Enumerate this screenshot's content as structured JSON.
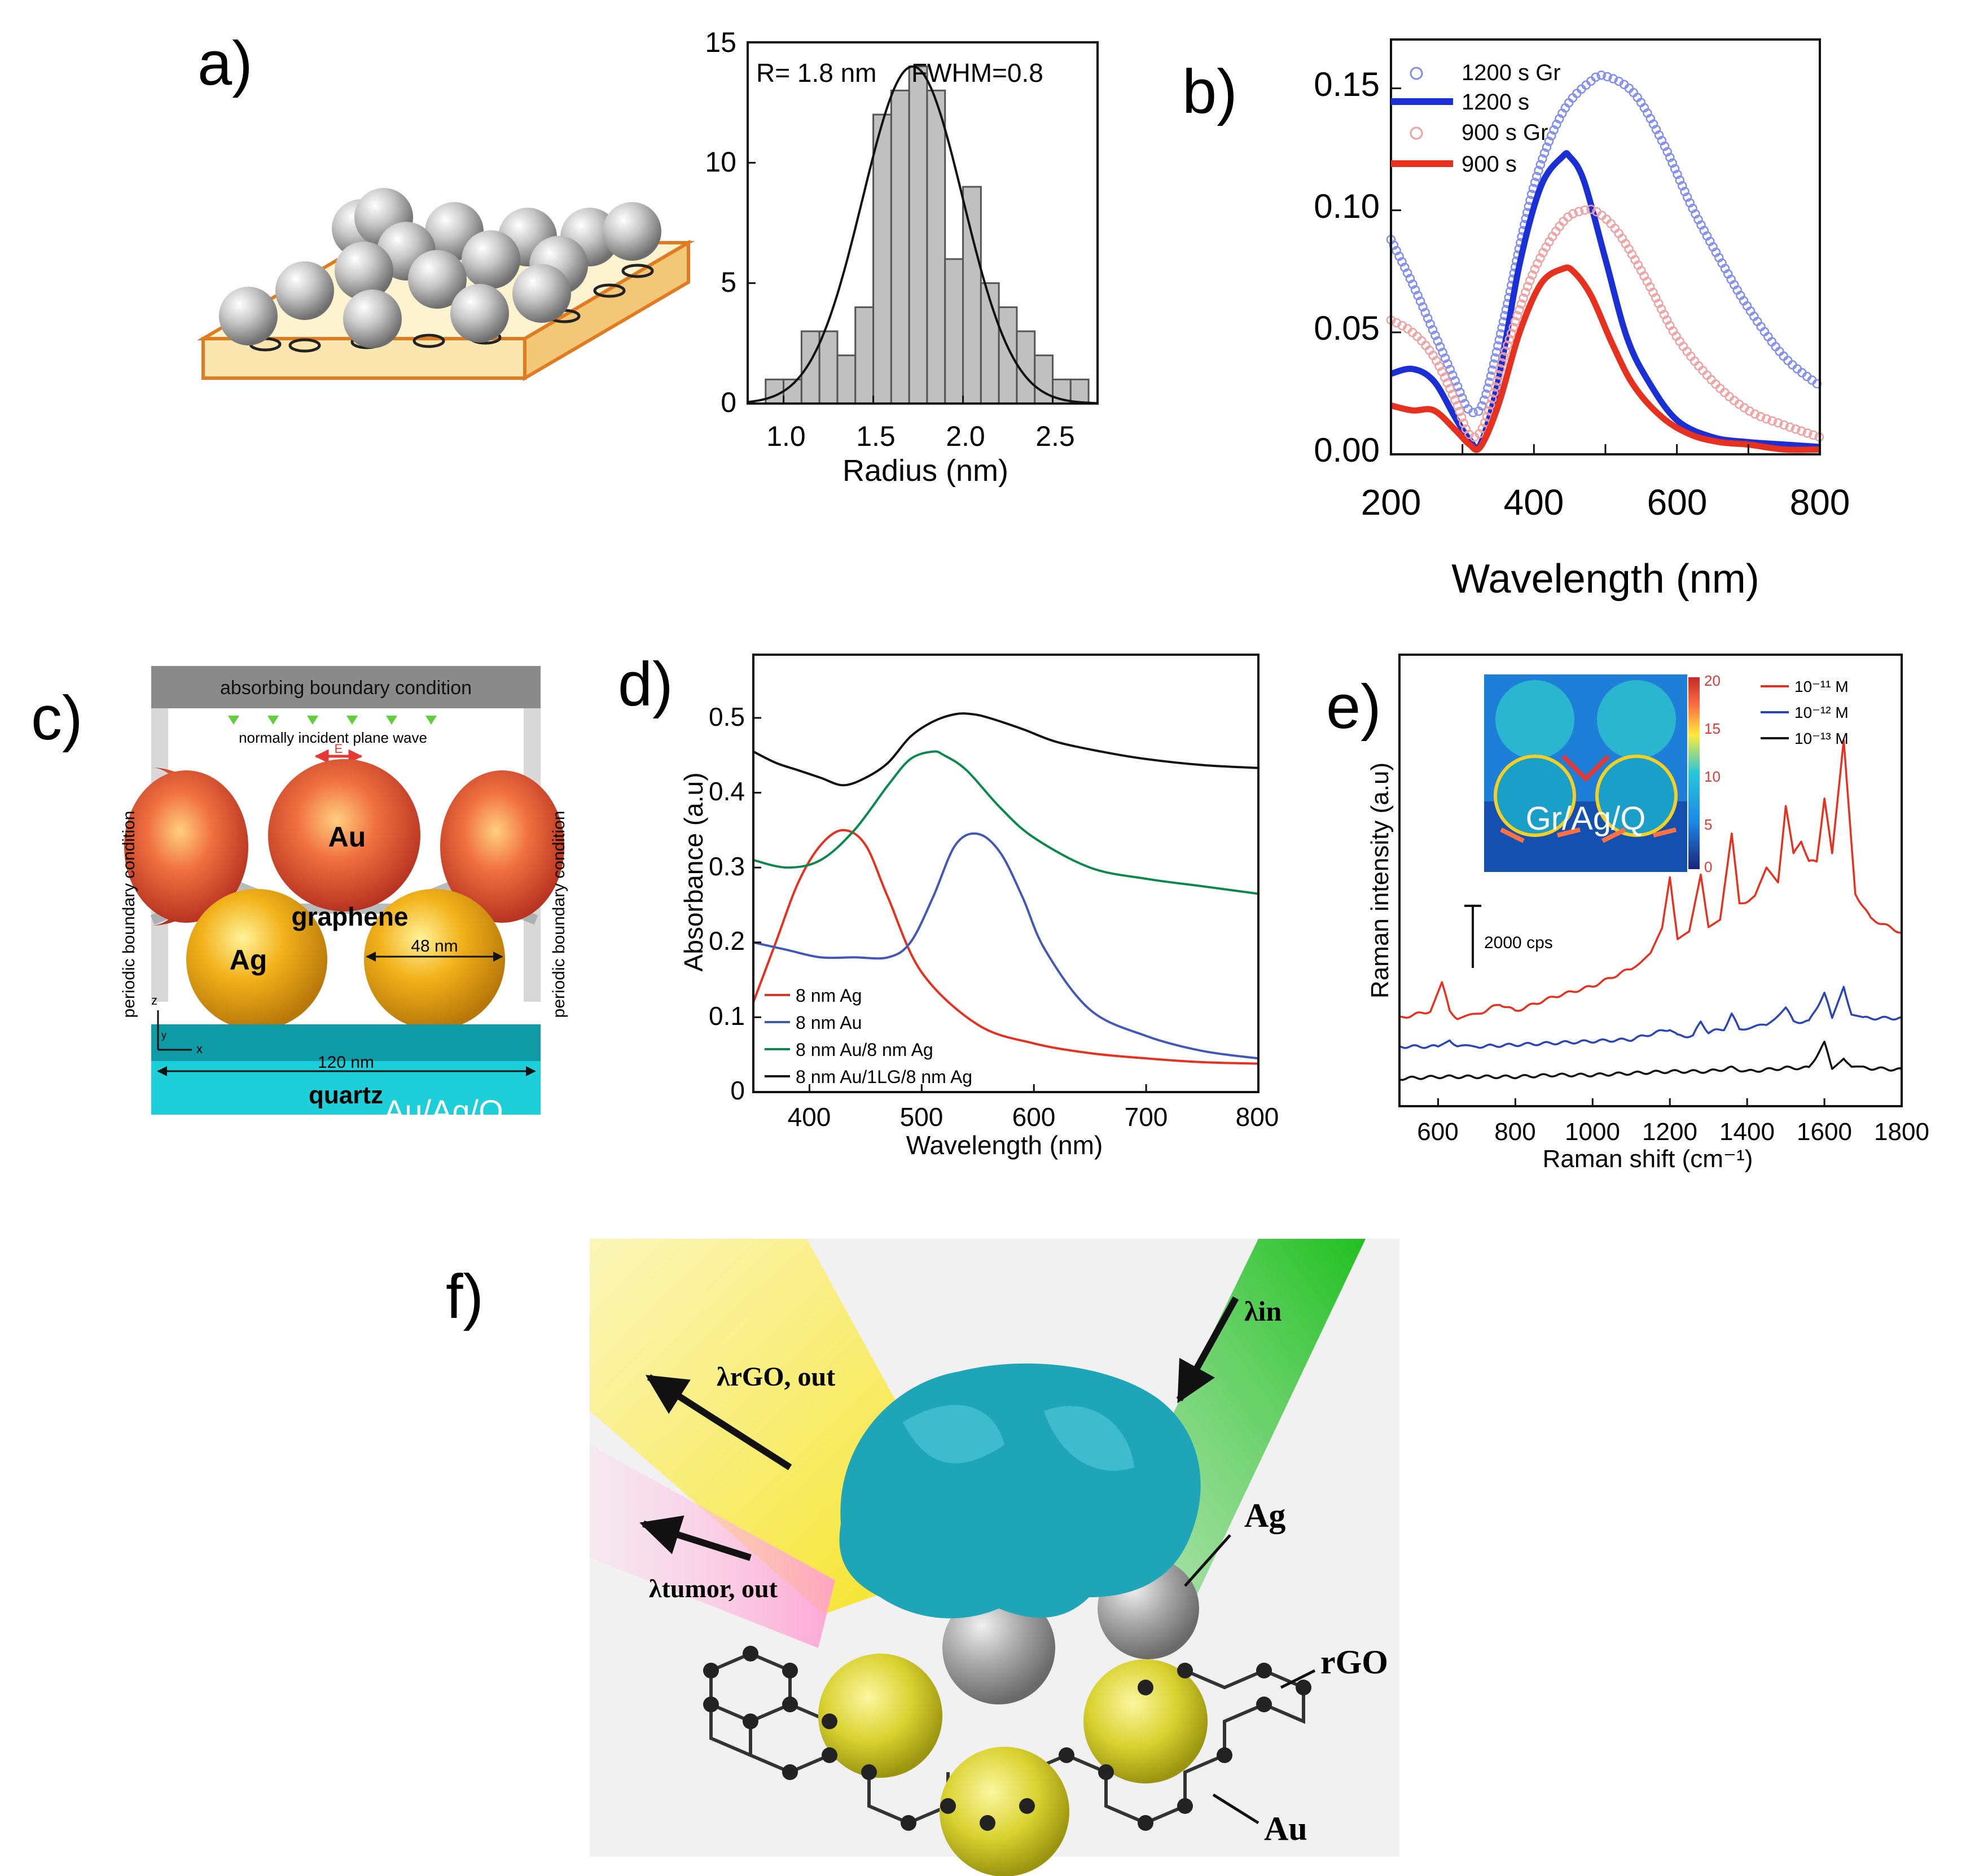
{
  "panel_labels": {
    "a": "a)",
    "b": "b)",
    "c": "c)",
    "d": "d)",
    "e": "e)",
    "f": "f)"
  },
  "colors": {
    "red": "#e8301f",
    "blue": "#1b2fd6",
    "green": "#0a8a4a",
    "black": "#111111",
    "gray_bar": "#c0c0c0",
    "quartz": "#1db6c0"
  },
  "panel_a": {
    "histogram": {
      "title_left": "R= 1.8 nm",
      "title_right": "FWHM=0.8",
      "xlabel": "Radius (nm)",
      "xticks": [
        "1.0",
        "1.5",
        "2.0",
        "2.5"
      ],
      "yticks": [
        "0",
        "5",
        "10",
        "15"
      ]
    }
  },
  "panel_b": {
    "xlabel": "Wavelength (nm)",
    "xticks": [
      "200",
      "400",
      "600",
      "800"
    ],
    "yticks": [
      "0.00",
      "0.05",
      "0.10",
      "0.15"
    ],
    "legend": [
      "1200 s Gr",
      "1200 s",
      "900 s Gr",
      "900 s"
    ]
  },
  "panel_c": {
    "top_label": "absorbing boundary condition",
    "incident_label": "normally incident plane wave",
    "e_label": "E",
    "side_label_left": "periodic boundary condition",
    "side_label_right": "periodic boundary condition",
    "au_label": "Au",
    "ag_label": "Ag",
    "graphene_label": "graphene",
    "dim_48": "48 nm",
    "dim_120": "120 nm",
    "quartz_label": "quartz",
    "overlay_label": "Au/Ag/Q",
    "axis_z": "z",
    "axis_x": "x",
    "axis_y": "y"
  },
  "panel_d": {
    "xlabel": "Wavelength (nm)",
    "ylabel": "Absorbance (a.u)",
    "xticks": [
      "400",
      "500",
      "600",
      "700",
      "800"
    ],
    "yticks": [
      "0",
      "0.1",
      "0.2",
      "0.3",
      "0.4",
      "0.5"
    ],
    "legend": [
      "8 nm Ag",
      "8 nm Au",
      "8 nm Au/8 nm Ag",
      "8 nm Au/1LG/8 nm Ag"
    ]
  },
  "panel_e": {
    "xlabel": "Raman shift (cm⁻¹)",
    "ylabel": "Raman intensity (a.u)",
    "xticks": [
      "600",
      "800",
      "1000",
      "1200",
      "1400",
      "1600",
      "1800"
    ],
    "scale_bar": "2000 cps",
    "legend": [
      "10⁻¹¹ M",
      "10⁻¹² M",
      "10⁻¹³ M"
    ],
    "inset_label": "Gr/Ag/Q",
    "inset_colorbar": [
      "20",
      "15",
      "10",
      "5",
      "0"
    ]
  },
  "panel_f": {
    "lambda_rgo": "λrGO, out",
    "lambda_tumor": "λtumor, out",
    "lambda_in": "λin",
    "ag_label": "Ag",
    "rgo_label": "rGO",
    "au_label": "Au"
  },
  "chart_data": [
    {
      "id": "a-histogram",
      "type": "bar",
      "title": "R= 1.8 nm   FWHM=0.8",
      "xlabel": "Radius (nm)",
      "ylabel": "",
      "xlim": [
        0.8,
        2.75
      ],
      "ylim": [
        0,
        15
      ],
      "bin_width": 0.1,
      "bin_starts": [
        0.8,
        0.9,
        1.0,
        1.1,
        1.2,
        1.3,
        1.4,
        1.5,
        1.6,
        1.7,
        1.8,
        1.9,
        2.0,
        2.1,
        2.2,
        2.3,
        2.4,
        2.5,
        2.6
      ],
      "values": [
        0,
        1,
        1,
        3,
        3,
        2,
        4,
        12,
        13,
        14,
        13,
        6,
        9,
        5,
        4,
        3,
        2,
        1,
        1
      ],
      "fit": {
        "type": "gaussian",
        "center": 1.72,
        "peak": 14,
        "sigma": 0.28
      }
    },
    {
      "id": "b-extinction",
      "type": "line",
      "xlabel": "Wavelength (nm)",
      "xlim": [
        200,
        800
      ],
      "ylim": [
        0,
        0.17
      ],
      "series": [
        {
          "name": "1200 s Gr",
          "style": "circles",
          "color": "#7f8cf0",
          "x": [
            200,
            230,
            260,
            290,
            310,
            330,
            360,
            400,
            440,
            480,
            500,
            540,
            580,
            620,
            660,
            700,
            750,
            800
          ],
          "y": [
            0.088,
            0.07,
            0.05,
            0.03,
            0.018,
            0.022,
            0.058,
            0.11,
            0.14,
            0.153,
            0.155,
            0.148,
            0.128,
            0.102,
            0.08,
            0.06,
            0.04,
            0.028
          ]
        },
        {
          "name": "1200 s",
          "style": "line",
          "color": "#1b2fd6",
          "x": [
            200,
            230,
            260,
            290,
            310,
            325,
            350,
            380,
            410,
            440,
            450,
            470,
            500,
            530,
            560,
            600,
            650,
            700,
            750,
            800
          ],
          "y": [
            0.033,
            0.035,
            0.03,
            0.015,
            0.006,
            0.004,
            0.03,
            0.078,
            0.11,
            0.122,
            0.122,
            0.112,
            0.08,
            0.048,
            0.03,
            0.014,
            0.007,
            0.005,
            0.004,
            0.003
          ]
        },
        {
          "name": "900 s Gr",
          "style": "circles",
          "color": "#f0a0a0",
          "x": [
            200,
            230,
            260,
            290,
            310,
            330,
            360,
            400,
            440,
            470,
            490,
            520,
            560,
            600,
            650,
            700,
            750,
            800
          ],
          "y": [
            0.055,
            0.05,
            0.04,
            0.022,
            0.008,
            0.012,
            0.042,
            0.075,
            0.095,
            0.1,
            0.099,
            0.09,
            0.07,
            0.048,
            0.03,
            0.018,
            0.012,
            0.007
          ]
        },
        {
          "name": "900 s",
          "style": "line",
          "color": "#e8301f",
          "x": [
            200,
            230,
            260,
            290,
            310,
            325,
            350,
            380,
            410,
            440,
            455,
            480,
            510,
            540,
            580,
            620,
            660,
            700,
            750,
            800
          ],
          "y": [
            0.02,
            0.018,
            0.018,
            0.01,
            0.004,
            0.003,
            0.02,
            0.05,
            0.07,
            0.076,
            0.075,
            0.065,
            0.045,
            0.028,
            0.015,
            0.008,
            0.005,
            0.004,
            0.002,
            0.002
          ]
        }
      ]
    },
    {
      "id": "d-absorbance",
      "type": "line",
      "xlabel": "Wavelength (nm)",
      "ylabel": "Absorbance (a.u)",
      "xlim": [
        350,
        800
      ],
      "ylim": [
        0,
        0.52
      ],
      "series": [
        {
          "name": "8 nm Ag",
          "color": "#e8301f",
          "x": [
            350,
            370,
            390,
            410,
            430,
            450,
            470,
            500,
            550,
            600,
            650,
            700,
            750,
            800
          ],
          "y": [
            0.12,
            0.2,
            0.28,
            0.33,
            0.35,
            0.33,
            0.26,
            0.16,
            0.09,
            0.065,
            0.052,
            0.045,
            0.04,
            0.038
          ]
        },
        {
          "name": "8 nm Au",
          "color": "#4058b8",
          "x": [
            350,
            380,
            410,
            440,
            470,
            490,
            510,
            530,
            550,
            570,
            590,
            610,
            650,
            700,
            750,
            800
          ],
          "y": [
            0.2,
            0.19,
            0.18,
            0.18,
            0.18,
            0.2,
            0.26,
            0.33,
            0.345,
            0.32,
            0.26,
            0.19,
            0.11,
            0.075,
            0.055,
            0.045
          ]
        },
        {
          "name": "8 nm Au/8 nm Ag",
          "color": "#0a8a4a",
          "x": [
            350,
            380,
            410,
            440,
            470,
            490,
            510,
            520,
            540,
            570,
            600,
            650,
            700,
            750,
            800
          ],
          "y": [
            0.31,
            0.3,
            0.31,
            0.35,
            0.41,
            0.445,
            0.455,
            0.45,
            0.43,
            0.38,
            0.34,
            0.3,
            0.285,
            0.275,
            0.265
          ]
        },
        {
          "name": "8 nm Au/1LG/8 nm Ag",
          "color": "#111111",
          "x": [
            350,
            370,
            390,
            410,
            430,
            450,
            470,
            490,
            510,
            530,
            545,
            560,
            590,
            620,
            660,
            700,
            750,
            800
          ],
          "y": [
            0.455,
            0.44,
            0.43,
            0.42,
            0.41,
            0.42,
            0.44,
            0.475,
            0.495,
            0.505,
            0.505,
            0.5,
            0.485,
            0.468,
            0.455,
            0.445,
            0.437,
            0.433
          ]
        }
      ]
    },
    {
      "id": "e-raman",
      "type": "line",
      "xlabel": "Raman shift (cm-1)",
      "ylabel": "Raman intensity (a.u)",
      "xlim": [
        500,
        1800
      ],
      "series": [
        {
          "name": "10-11 M",
          "color": "#e8301f",
          "x": [
            500,
            580,
            610,
            630,
            650,
            700,
            760,
            800,
            900,
            1000,
            1100,
            1150,
            1180,
            1200,
            1220,
            1250,
            1280,
            1300,
            1330,
            1360,
            1380,
            1420,
            1450,
            1480,
            1500,
            1520,
            1540,
            1560,
            1580,
            1600,
            1620,
            1650,
            1680,
            1720,
            1800
          ],
          "y": [
            0.2,
            0.22,
            0.3,
            0.22,
            0.2,
            0.21,
            0.24,
            0.22,
            0.26,
            0.29,
            0.34,
            0.38,
            0.45,
            0.6,
            0.42,
            0.44,
            0.6,
            0.46,
            0.48,
            0.72,
            0.52,
            0.54,
            0.62,
            0.58,
            0.8,
            0.66,
            0.7,
            0.64,
            0.64,
            0.82,
            0.66,
            0.98,
            0.55,
            0.48,
            0.44
          ]
        },
        {
          "name": "10-12 M",
          "color": "#2a45b5",
          "x": [
            500,
            600,
            630,
            650,
            700,
            800,
            900,
            1000,
            1100,
            1200,
            1220,
            1260,
            1280,
            1300,
            1340,
            1360,
            1380,
            1450,
            1500,
            1520,
            1560,
            1600,
            1620,
            1650,
            1670,
            1700,
            1800
          ],
          "y": [
            0.12,
            0.12,
            0.14,
            0.12,
            0.12,
            0.125,
            0.13,
            0.135,
            0.14,
            0.17,
            0.15,
            0.15,
            0.19,
            0.16,
            0.17,
            0.21,
            0.17,
            0.18,
            0.23,
            0.19,
            0.19,
            0.27,
            0.2,
            0.29,
            0.21,
            0.2,
            0.2
          ]
        },
        {
          "name": "10-13 M",
          "color": "#111111",
          "x": [
            500,
            600,
            700,
            800,
            900,
            1000,
            1100,
            1200,
            1300,
            1360,
            1400,
            1500,
            1560,
            1600,
            1620,
            1650,
            1670,
            1700,
            1800
          ],
          "y": [
            0.03,
            0.035,
            0.035,
            0.035,
            0.04,
            0.04,
            0.045,
            0.05,
            0.05,
            0.06,
            0.05,
            0.06,
            0.06,
            0.13,
            0.06,
            0.09,
            0.06,
            0.06,
            0.055
          ]
        }
      ]
    }
  ]
}
